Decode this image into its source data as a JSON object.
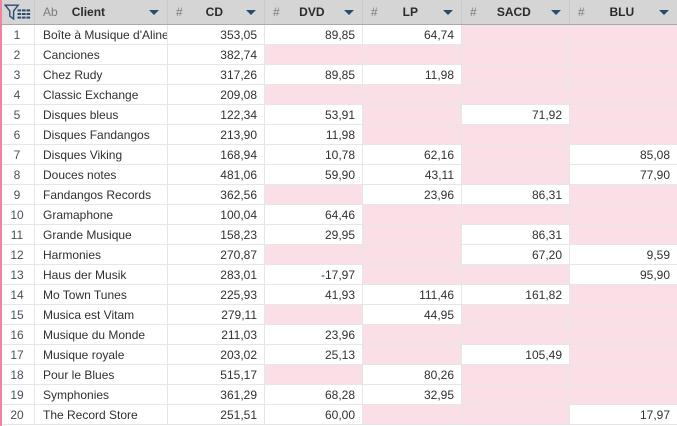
{
  "colors": {
    "accent_navy": "#2a4b71",
    "null_pink": "#fbdfe7",
    "stripe_pink": "#ee84a0",
    "header_gray": "#d5d5d5"
  },
  "header": {
    "corner_icon": "funnel-table-icon",
    "columns": [
      {
        "type_glyph": "Ab",
        "label": "Client"
      },
      {
        "type_glyph": "#",
        "label": "CD"
      },
      {
        "type_glyph": "#",
        "label": "DVD"
      },
      {
        "type_glyph": "#",
        "label": "LP"
      },
      {
        "type_glyph": "#",
        "label": "SACD"
      },
      {
        "type_glyph": "#",
        "label": "BLU"
      }
    ]
  },
  "rows": [
    {
      "num": "1",
      "client": "Boîte à Musique d'Aline",
      "values": [
        "353,05",
        "89,85",
        "64,74",
        null,
        null
      ]
    },
    {
      "num": "2",
      "client": "Canciones",
      "values": [
        "382,74",
        null,
        null,
        null,
        null
      ]
    },
    {
      "num": "3",
      "client": "Chez Rudy",
      "values": [
        "317,26",
        "89,85",
        "11,98",
        null,
        null
      ]
    },
    {
      "num": "4",
      "client": "Classic Exchange",
      "values": [
        "209,08",
        null,
        null,
        null,
        null
      ]
    },
    {
      "num": "5",
      "client": "Disques bleus",
      "values": [
        "122,34",
        "53,91",
        null,
        "71,92",
        null
      ]
    },
    {
      "num": "6",
      "client": "Disques Fandangos",
      "values": [
        "213,90",
        "11,98",
        null,
        null,
        null
      ]
    },
    {
      "num": "7",
      "client": "Disques Viking",
      "values": [
        "168,94",
        "10,78",
        "62,16",
        null,
        "85,08"
      ]
    },
    {
      "num": "8",
      "client": "Douces notes",
      "values": [
        "481,06",
        "59,90",
        "43,11",
        null,
        "77,90"
      ]
    },
    {
      "num": "9",
      "client": "Fandangos Records",
      "values": [
        "362,56",
        null,
        "23,96",
        "86,31",
        null
      ]
    },
    {
      "num": "10",
      "client": "Gramaphone",
      "values": [
        "100,04",
        "64,46",
        null,
        null,
        null
      ]
    },
    {
      "num": "11",
      "client": "Grande Musique",
      "values": [
        "158,23",
        "29,95",
        null,
        "86,31",
        null
      ]
    },
    {
      "num": "12",
      "client": "Harmonies",
      "values": [
        "270,87",
        null,
        null,
        "67,20",
        "9,59"
      ]
    },
    {
      "num": "13",
      "client": "Haus der Musik",
      "values": [
        "283,01",
        "-17,97",
        null,
        null,
        "95,90"
      ]
    },
    {
      "num": "14",
      "client": "Mo Town Tunes",
      "values": [
        "225,93",
        "41,93",
        "111,46",
        "161,82",
        null
      ]
    },
    {
      "num": "15",
      "client": "Musica est Vitam",
      "values": [
        "279,11",
        null,
        "44,95",
        null,
        null
      ]
    },
    {
      "num": "16",
      "client": "Musique du Monde",
      "values": [
        "211,03",
        "23,96",
        null,
        null,
        null
      ]
    },
    {
      "num": "17",
      "client": "Musique royale",
      "values": [
        "203,02",
        "25,13",
        null,
        "105,49",
        null
      ]
    },
    {
      "num": "18",
      "client": "Pour le Blues",
      "values": [
        "515,17",
        null,
        "80,26",
        null,
        null
      ]
    },
    {
      "num": "19",
      "client": "Symphonies",
      "values": [
        "361,29",
        "68,28",
        "32,95",
        null,
        null
      ]
    },
    {
      "num": "20",
      "client": "The Record Store",
      "values": [
        "251,51",
        "60,00",
        null,
        null,
        "17,97"
      ]
    }
  ]
}
